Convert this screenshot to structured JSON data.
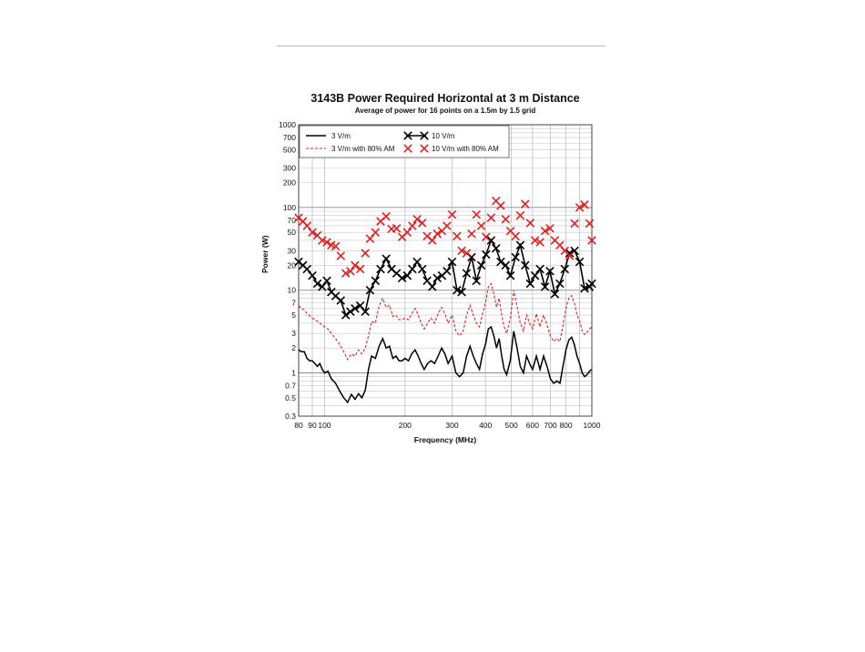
{
  "chart_data": {
    "type": "line",
    "title": "3143B Power Required Horizontal at 3 m Distance",
    "subtitle": "Average of power for 16 points on a 1.5m by 1.5 grid",
    "xlabel": "Frequency (MHz)",
    "ylabel": "Power (W)",
    "xscale": "log",
    "yscale": "log",
    "xlim": [
      80,
      1000
    ],
    "ylim": [
      0.3,
      1000
    ],
    "x_ticks": [
      "80",
      "90",
      "100",
      "200",
      "300",
      "400",
      "500",
      "600",
      "700",
      "800",
      "1000"
    ],
    "y_ticks": [
      "1000",
      "700",
      "500",
      "300",
      "200",
      "100",
      "70",
      "50",
      "30",
      "20",
      "10",
      "7",
      "5",
      "3",
      "2",
      "1",
      "0.7",
      "0.5",
      "0.3"
    ],
    "grid": true,
    "legend_position": "top-left",
    "series": [
      {
        "name": "3 V/m",
        "style": "solid",
        "color": "#000000",
        "x": [
          80,
          82,
          84,
          86,
          88,
          90,
          92,
          94,
          96,
          98,
          100,
          103,
          106,
          110,
          114,
          118,
          122,
          126,
          130,
          134,
          138,
          142,
          146,
          150,
          155,
          160,
          165,
          170,
          175,
          180,
          185,
          190,
          195,
          200,
          206,
          212,
          218,
          224,
          230,
          236,
          243,
          250,
          258,
          266,
          274,
          282,
          290,
          300,
          310,
          320,
          330,
          340,
          350,
          360,
          370,
          380,
          390,
          400,
          410,
          420,
          430,
          440,
          450,
          460,
          470,
          480,
          495,
          510,
          525,
          540,
          555,
          570,
          585,
          600,
          620,
          640,
          660,
          680,
          700,
          720,
          740,
          760,
          780,
          800,
          820,
          840,
          860,
          880,
          900,
          920,
          940,
          960,
          980,
          1000
        ],
        "y": [
          1.9,
          1.8,
          1.8,
          1.5,
          1.4,
          1.4,
          1.3,
          1.2,
          1.3,
          1.1,
          1.0,
          1.05,
          0.85,
          0.75,
          0.6,
          0.5,
          0.44,
          0.55,
          0.48,
          0.56,
          0.5,
          0.62,
          1.1,
          1.6,
          1.5,
          2.1,
          2.6,
          2.0,
          2.1,
          1.5,
          1.6,
          1.4,
          1.4,
          1.5,
          1.4,
          1.7,
          1.9,
          1.6,
          1.3,
          1.1,
          1.3,
          1.4,
          1.3,
          1.6,
          2.0,
          1.7,
          1.3,
          1.6,
          1.0,
          0.9,
          1.0,
          1.6,
          2.1,
          1.6,
          1.3,
          1.1,
          1.7,
          2.2,
          3.4,
          3.6,
          2.8,
          2.0,
          2.6,
          1.6,
          1.1,
          0.95,
          1.4,
          3.2,
          2.0,
          1.2,
          1.0,
          1.6,
          1.3,
          1.1,
          1.6,
          1.1,
          1.6,
          1.2,
          0.85,
          0.75,
          0.8,
          0.75,
          1.2,
          1.9,
          2.5,
          2.7,
          2.2,
          1.6,
          1.3,
          1.0,
          0.9,
          0.95,
          1.05,
          1.1
        ]
      },
      {
        "name": "3 V/m with 80% AM",
        "style": "dashed",
        "color": "#e02020",
        "x": [
          80,
          82,
          84,
          86,
          88,
          90,
          92,
          94,
          96,
          98,
          100,
          103,
          106,
          110,
          114,
          118,
          122,
          126,
          130,
          134,
          138,
          142,
          146,
          150,
          155,
          160,
          165,
          170,
          175,
          180,
          185,
          190,
          195,
          200,
          206,
          212,
          218,
          224,
          230,
          236,
          243,
          250,
          258,
          266,
          274,
          282,
          290,
          300,
          310,
          320,
          330,
          340,
          350,
          360,
          370,
          380,
          390,
          400,
          410,
          420,
          430,
          440,
          450,
          460,
          470,
          480,
          495,
          510,
          525,
          540,
          555,
          570,
          585,
          600,
          620,
          640,
          660,
          680,
          700,
          720,
          740,
          760,
          780,
          800,
          820,
          840,
          860,
          880,
          900,
          920,
          940,
          960,
          980,
          1000
        ],
        "y": [
          6.5,
          6.0,
          5.8,
          5.2,
          4.9,
          4.6,
          4.4,
          4.2,
          4.0,
          3.8,
          3.6,
          3.4,
          3.0,
          2.6,
          2.2,
          1.8,
          1.45,
          1.7,
          1.6,
          1.9,
          1.7,
          2.0,
          2.8,
          4.2,
          4.0,
          6.5,
          8.0,
          6.2,
          6.6,
          4.8,
          5.0,
          4.4,
          4.4,
          4.6,
          4.4,
          5.2,
          6.0,
          5.0,
          4.0,
          3.4,
          4.0,
          4.6,
          4.0,
          5.2,
          6.2,
          5.2,
          4.0,
          5.0,
          3.2,
          2.8,
          3.2,
          5.0,
          6.6,
          5.0,
          4.0,
          3.6,
          5.2,
          7.0,
          11.0,
          12.0,
          9.0,
          6.2,
          8.0,
          5.0,
          3.6,
          3.0,
          4.5,
          10.0,
          6.4,
          4.0,
          3.2,
          5.0,
          4.0,
          3.4,
          5.2,
          3.6,
          5.0,
          3.8,
          2.8,
          2.4,
          2.6,
          2.4,
          3.8,
          6.0,
          8.0,
          8.6,
          7.0,
          5.0,
          4.2,
          3.2,
          2.9,
          3.1,
          3.4,
          3.6
        ]
      },
      {
        "name": "10 V/m",
        "style": "solid-x",
        "color": "#000000",
        "x": [
          80,
          83,
          86,
          90,
          94,
          98,
          102,
          106,
          110,
          115,
          120,
          125,
          130,
          136,
          142,
          148,
          155,
          162,
          170,
          178,
          186,
          195,
          204,
          213,
          222,
          232,
          242,
          253,
          264,
          275,
          287,
          300,
          313,
          326,
          340,
          355,
          370,
          386,
          402,
          420,
          438,
          456,
          476,
          496,
          518,
          540,
          563,
          588,
          613,
          640,
          668,
          697,
          727,
          759,
          792,
          826,
          862,
          900,
          939,
          980,
          1000
        ],
        "y": [
          22,
          20,
          18,
          15,
          12,
          11,
          13,
          9.5,
          8.5,
          7.5,
          5.0,
          5.5,
          6.0,
          6.5,
          5.5,
          10,
          13,
          18,
          24,
          18,
          16,
          14,
          15,
          18,
          22,
          18,
          13,
          11,
          14,
          15,
          17,
          22,
          10,
          9.5,
          16,
          25,
          13,
          20,
          27,
          40,
          32,
          22,
          20,
          15,
          25,
          35,
          20,
          12,
          15,
          18,
          11,
          17,
          9,
          12,
          18,
          28,
          30,
          22,
          10.5,
          11,
          12
        ]
      },
      {
        "name": "10 V/m with 80% AM",
        "style": "x-only",
        "color": "#e02020",
        "x": [
          80,
          83,
          86,
          90,
          94,
          98,
          102,
          106,
          110,
          115,
          120,
          125,
          130,
          136,
          142,
          148,
          155,
          162,
          170,
          178,
          186,
          195,
          204,
          213,
          222,
          232,
          242,
          253,
          264,
          275,
          287,
          300,
          313,
          326,
          340,
          355,
          370,
          386,
          402,
          420,
          438,
          456,
          476,
          496,
          518,
          540,
          563,
          588,
          613,
          640,
          668,
          697,
          727,
          759,
          792,
          826,
          862,
          900,
          939,
          980,
          1000
        ],
        "y": [
          75,
          68,
          60,
          50,
          46,
          40,
          38,
          35,
          34,
          26,
          16,
          17,
          20,
          18,
          28,
          42,
          50,
          68,
          78,
          55,
          56,
          44,
          50,
          60,
          72,
          65,
          45,
          40,
          48,
          52,
          60,
          82,
          45,
          30,
          28,
          48,
          82,
          60,
          44,
          75,
          120,
          105,
          72,
          52,
          45,
          80,
          110,
          65,
          40,
          38,
          52,
          56,
          40,
          35,
          30,
          26,
          64,
          100,
          108,
          64,
          40
        ]
      }
    ]
  },
  "legend": {
    "entries": [
      "3 V/m",
      "10 V/m",
      "3 V/m with 80% AM",
      "10 V/m with 80% AM"
    ]
  }
}
